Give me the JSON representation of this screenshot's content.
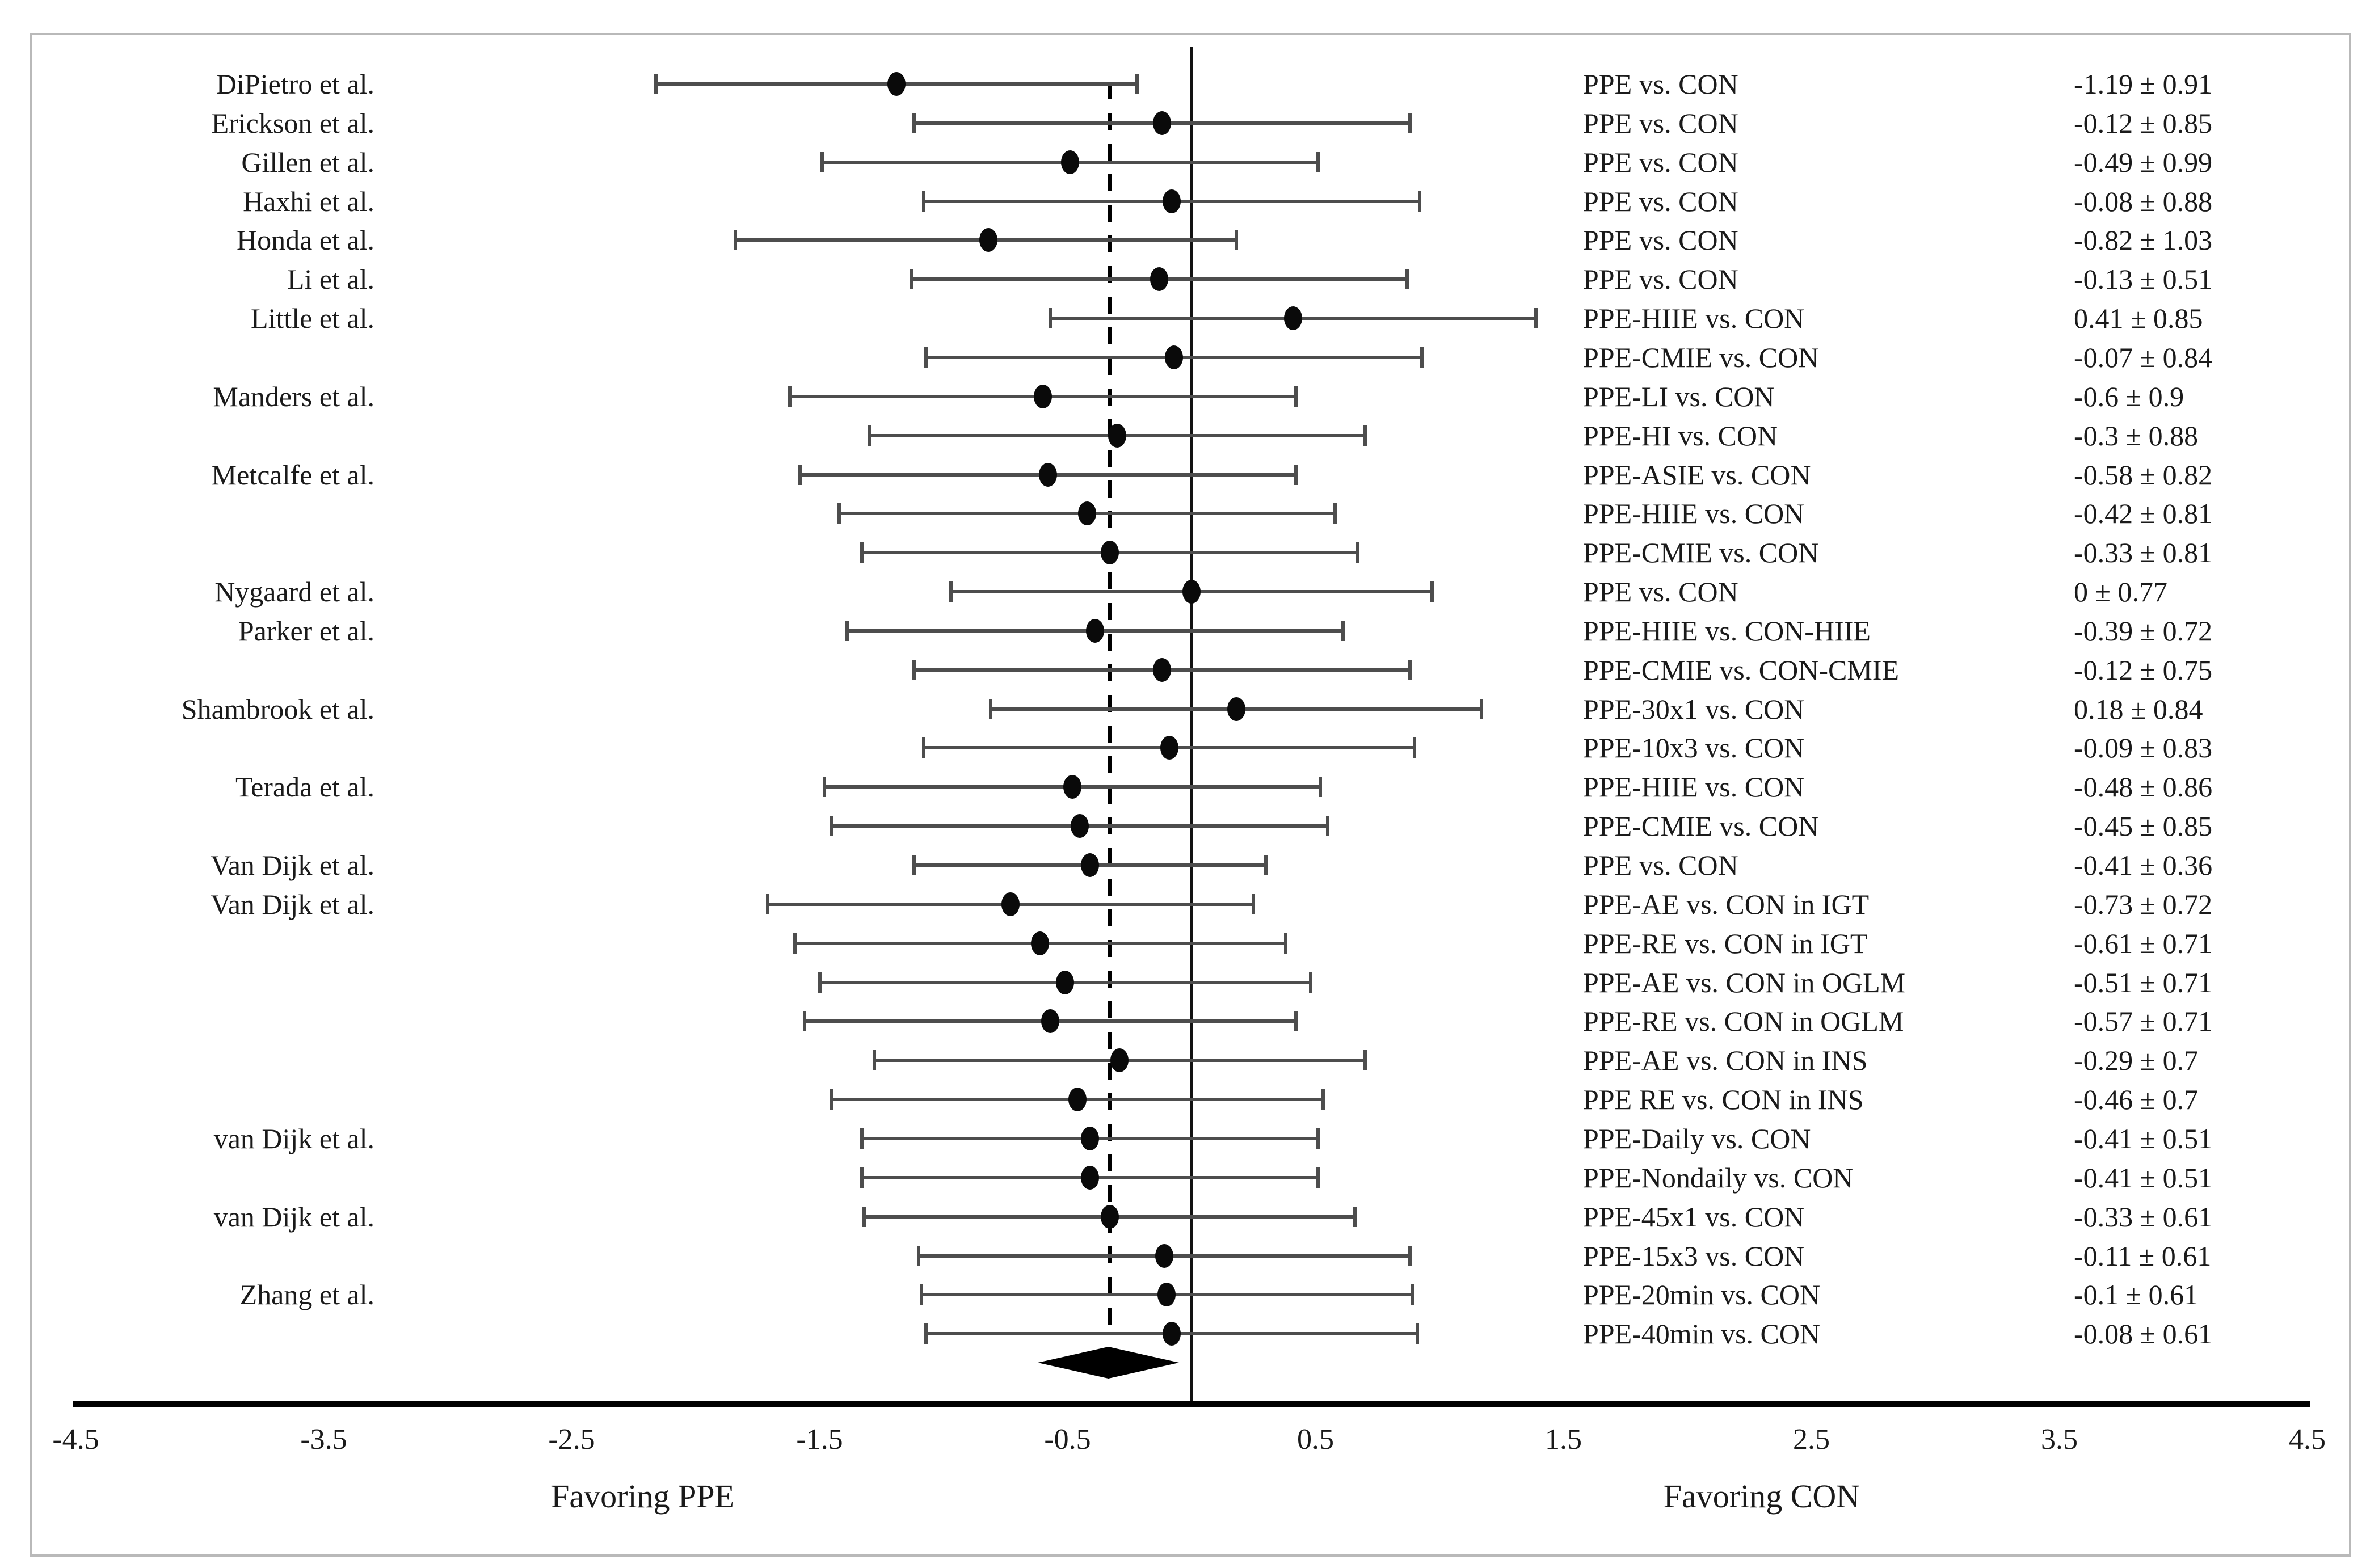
{
  "chart_data": {
    "type": "forest",
    "title": "",
    "xlabel_left": "Favoring PPE",
    "xlabel_right": "Favoring CON",
    "x_axis": {
      "min": -4.5,
      "max": 4.5,
      "tick_labels": [
        "-4.5",
        "-3.5",
        "-2.5",
        "-1.5",
        "-0.5",
        "0.5",
        "1.5",
        "2.5",
        "3.5",
        "4.5"
      ],
      "tick_values": [
        -4.5,
        -3.5,
        -2.5,
        -1.5,
        -0.5,
        0.5,
        1.5,
        2.5,
        3.5,
        4.5
      ],
      "grid": false
    },
    "reference_line_value": 0,
    "dashed_line_value": -0.33,
    "summary_diamond": {
      "center": -0.33,
      "low": -0.62,
      "high": -0.05
    },
    "rows": [
      {
        "study": "DiPietro et al.",
        "comparison": "PPE vs. CON",
        "value_label": "-1.19 ± 0.91",
        "mean": -1.19,
        "pm": 0.91,
        "ci_low": -2.16,
        "ci_high": -0.22
      },
      {
        "study": "Erickson et al.",
        "comparison": "PPE vs. CON",
        "value_label": "-0.12 ± 0.85",
        "mean": -0.12,
        "pm": 0.85,
        "ci_low": -1.12,
        "ci_high": 0.88
      },
      {
        "study": "Gillen et al.",
        "comparison": "PPE vs. CON",
        "value_label": "-0.49 ± 0.99",
        "mean": -0.49,
        "pm": 0.99,
        "ci_low": -1.49,
        "ci_high": 0.51
      },
      {
        "study": "Haxhi et al.",
        "comparison": "PPE vs. CON",
        "value_label": "-0.08 ± 0.88",
        "mean": -0.08,
        "pm": 0.88,
        "ci_low": -1.08,
        "ci_high": 0.92
      },
      {
        "study": "Honda et al.",
        "comparison": "PPE vs. CON",
        "value_label": "-0.82 ± 1.03",
        "mean": -0.82,
        "pm": 1.03,
        "ci_low": -1.84,
        "ci_high": 0.18
      },
      {
        "study": "Li et al.",
        "comparison": "PPE vs. CON",
        "value_label": "-0.13 ± 0.51",
        "mean": -0.13,
        "pm": 0.51,
        "ci_low": -1.13,
        "ci_high": 0.87
      },
      {
        "study": "Little et al.",
        "comparison": "PPE-HIIE vs. CON",
        "value_label": "0.41 ± 0.85",
        "mean": 0.41,
        "pm": 0.85,
        "ci_low": -0.57,
        "ci_high": 1.39
      },
      {
        "study": "",
        "comparison": "PPE-CMIE vs. CON",
        "value_label": "-0.07 ± 0.84",
        "mean": -0.07,
        "pm": 0.84,
        "ci_low": -1.07,
        "ci_high": 0.93
      },
      {
        "study": "Manders et al.",
        "comparison": "PPE-LI vs. CON",
        "value_label": "-0.6 ± 0.9",
        "mean": -0.6,
        "pm": 0.9,
        "ci_low": -1.62,
        "ci_high": 0.42
      },
      {
        "study": "",
        "comparison": "PPE-HI vs. CON",
        "value_label": "-0.3 ± 0.88",
        "mean": -0.3,
        "pm": 0.88,
        "ci_low": -1.3,
        "ci_high": 0.7
      },
      {
        "study": "Metcalfe et al.",
        "comparison": "PPE-ASIE vs. CON",
        "value_label": "-0.58 ± 0.82",
        "mean": -0.58,
        "pm": 0.82,
        "ci_low": -1.58,
        "ci_high": 0.42
      },
      {
        "study": "",
        "comparison": "PPE-HIIE vs. CON",
        "value_label": "-0.42 ± 0.81",
        "mean": -0.42,
        "pm": 0.81,
        "ci_low": -1.42,
        "ci_high": 0.58
      },
      {
        "study": "",
        "comparison": "PPE-CMIE vs. CON",
        "value_label": "-0.33 ± 0.81",
        "mean": -0.33,
        "pm": 0.81,
        "ci_low": -1.33,
        "ci_high": 0.67
      },
      {
        "study": "Nygaard et al.",
        "comparison": "PPE vs. CON",
        "value_label": "0 ± 0.77",
        "mean": 0,
        "pm": 0.77,
        "ci_low": -0.97,
        "ci_high": 0.97
      },
      {
        "study": "Parker et al.",
        "comparison": "PPE-HIIE vs. CON-HIIE",
        "value_label": "-0.39 ± 0.72",
        "mean": -0.39,
        "pm": 0.72,
        "ci_low": -1.39,
        "ci_high": 0.61
      },
      {
        "study": "",
        "comparison": "PPE-CMIE vs. CON-CMIE",
        "value_label": "-0.12 ± 0.75",
        "mean": -0.12,
        "pm": 0.75,
        "ci_low": -1.12,
        "ci_high": 0.88
      },
      {
        "study": "Shambrook et al.",
        "comparison": "PPE-30x1 vs. CON",
        "value_label": "0.18 ± 0.84",
        "mean": 0.18,
        "pm": 0.84,
        "ci_low": -0.81,
        "ci_high": 1.17
      },
      {
        "study": "",
        "comparison": "PPE-10x3 vs. CON",
        "value_label": "-0.09 ± 0.83",
        "mean": -0.09,
        "pm": 0.83,
        "ci_low": -1.08,
        "ci_high": 0.9
      },
      {
        "study": "Terada et al.",
        "comparison": "PPE-HIIE vs. CON",
        "value_label": "-0.48 ± 0.86",
        "mean": -0.48,
        "pm": 0.86,
        "ci_low": -1.48,
        "ci_high": 0.52
      },
      {
        "study": "",
        "comparison": "PPE-CMIE vs. CON",
        "value_label": "-0.45 ± 0.85",
        "mean": -0.45,
        "pm": 0.85,
        "ci_low": -1.45,
        "ci_high": 0.55
      },
      {
        "study": "Van Dijk et al.",
        "comparison": "PPE vs. CON",
        "value_label": "-0.41 ± 0.36",
        "mean": -0.41,
        "pm": 0.36,
        "ci_low": -1.12,
        "ci_high": 0.3
      },
      {
        "study": "Van Dijk et al.",
        "comparison": "PPE-AE vs. CON in IGT",
        "value_label": "-0.73 ± 0.72",
        "mean": -0.73,
        "pm": 0.72,
        "ci_low": -1.71,
        "ci_high": 0.25
      },
      {
        "study": "",
        "comparison": "PPE-RE vs. CON in IGT",
        "value_label": "-0.61 ± 0.71",
        "mean": -0.61,
        "pm": 0.71,
        "ci_low": -1.6,
        "ci_high": 0.38
      },
      {
        "study": "",
        "comparison": "PPE-AE vs. CON in OGLM",
        "value_label": "-0.51 ± 0.71",
        "mean": -0.51,
        "pm": 0.71,
        "ci_low": -1.5,
        "ci_high": 0.48
      },
      {
        "study": "",
        "comparison": "PPE-RE vs. CON in OGLM",
        "value_label": "-0.57 ± 0.71",
        "mean": -0.57,
        "pm": 0.71,
        "ci_low": -1.56,
        "ci_high": 0.42
      },
      {
        "study": "",
        "comparison": "PPE-AE vs. CON in INS",
        "value_label": "-0.29 ± 0.7",
        "mean": -0.29,
        "pm": 0.7,
        "ci_low": -1.28,
        "ci_high": 0.7
      },
      {
        "study": "",
        "comparison": "PPE RE vs. CON in INS",
        "value_label": "-0.46 ± 0.7",
        "mean": -0.46,
        "pm": 0.7,
        "ci_low": -1.45,
        "ci_high": 0.53
      },
      {
        "study": "van Dijk et al.",
        "comparison": "PPE-Daily vs. CON",
        "value_label": "-0.41 ± 0.51",
        "mean": -0.41,
        "pm": 0.51,
        "ci_low": -1.33,
        "ci_high": 0.51
      },
      {
        "study": "",
        "comparison": "PPE-Nondaily vs. CON",
        "value_label": "-0.41 ± 0.51",
        "mean": -0.41,
        "pm": 0.51,
        "ci_low": -1.33,
        "ci_high": 0.51
      },
      {
        "study": "van Dijk et al.",
        "comparison": "PPE-45x1 vs. CON",
        "value_label": "-0.33 ± 0.61",
        "mean": -0.33,
        "pm": 0.61,
        "ci_low": -1.32,
        "ci_high": 0.66
      },
      {
        "study": "",
        "comparison": "PPE-15x3 vs. CON",
        "value_label": "-0.11 ± 0.61",
        "mean": -0.11,
        "pm": 0.61,
        "ci_low": -1.1,
        "ci_high": 0.88
      },
      {
        "study": "Zhang et al.",
        "comparison": "PPE-20min vs. CON",
        "value_label": "-0.1 ± 0.61",
        "mean": -0.1,
        "pm": 0.61,
        "ci_low": -1.09,
        "ci_high": 0.89
      },
      {
        "study": "",
        "comparison": "PPE-40min vs. CON",
        "value_label": "-0.08 ± 0.61",
        "mean": -0.08,
        "pm": 0.61,
        "ci_low": -1.07,
        "ci_high": 0.91
      }
    ]
  },
  "captions": {
    "left": "Favoring PPE",
    "right": "Favoring CON"
  },
  "colors": {
    "whisker": "#4d4d4d",
    "point": "#0a0a0a",
    "axis": "#000000",
    "frame_border": "#b9b9b9",
    "text": "#1a1a1a"
  }
}
